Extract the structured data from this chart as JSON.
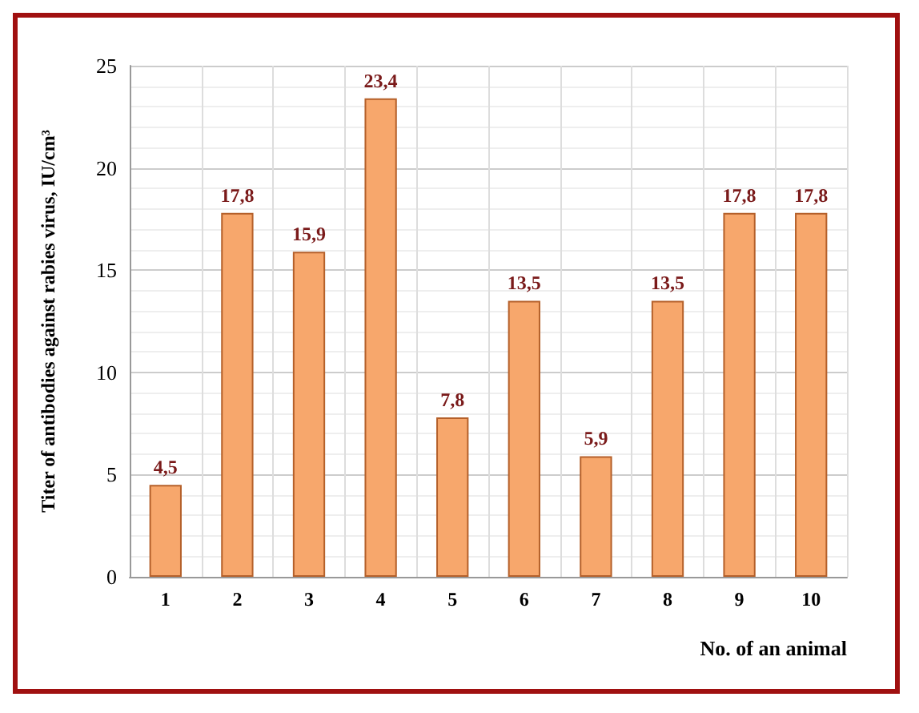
{
  "chart_data": {
    "type": "bar",
    "xlabel": "No. of an animal",
    "ylabel": "Titer of antibodies against rabies virus, IU/cm³",
    "categories": [
      "1",
      "2",
      "3",
      "4",
      "5",
      "6",
      "7",
      "8",
      "9",
      "10"
    ],
    "values": [
      4.5,
      17.8,
      15.9,
      23.4,
      7.8,
      13.5,
      5.9,
      13.5,
      17.8,
      17.8
    ],
    "value_labels": [
      "4,5",
      "17,8",
      "15,9",
      "23,4",
      "7,8",
      "13,5",
      "5,9",
      "13,5",
      "17,8",
      "17,8"
    ],
    "color": "#f7a76c",
    "ylim": [
      0,
      25
    ],
    "yticks": [
      0,
      5,
      10,
      15,
      20,
      25
    ],
    "grid": true
  }
}
